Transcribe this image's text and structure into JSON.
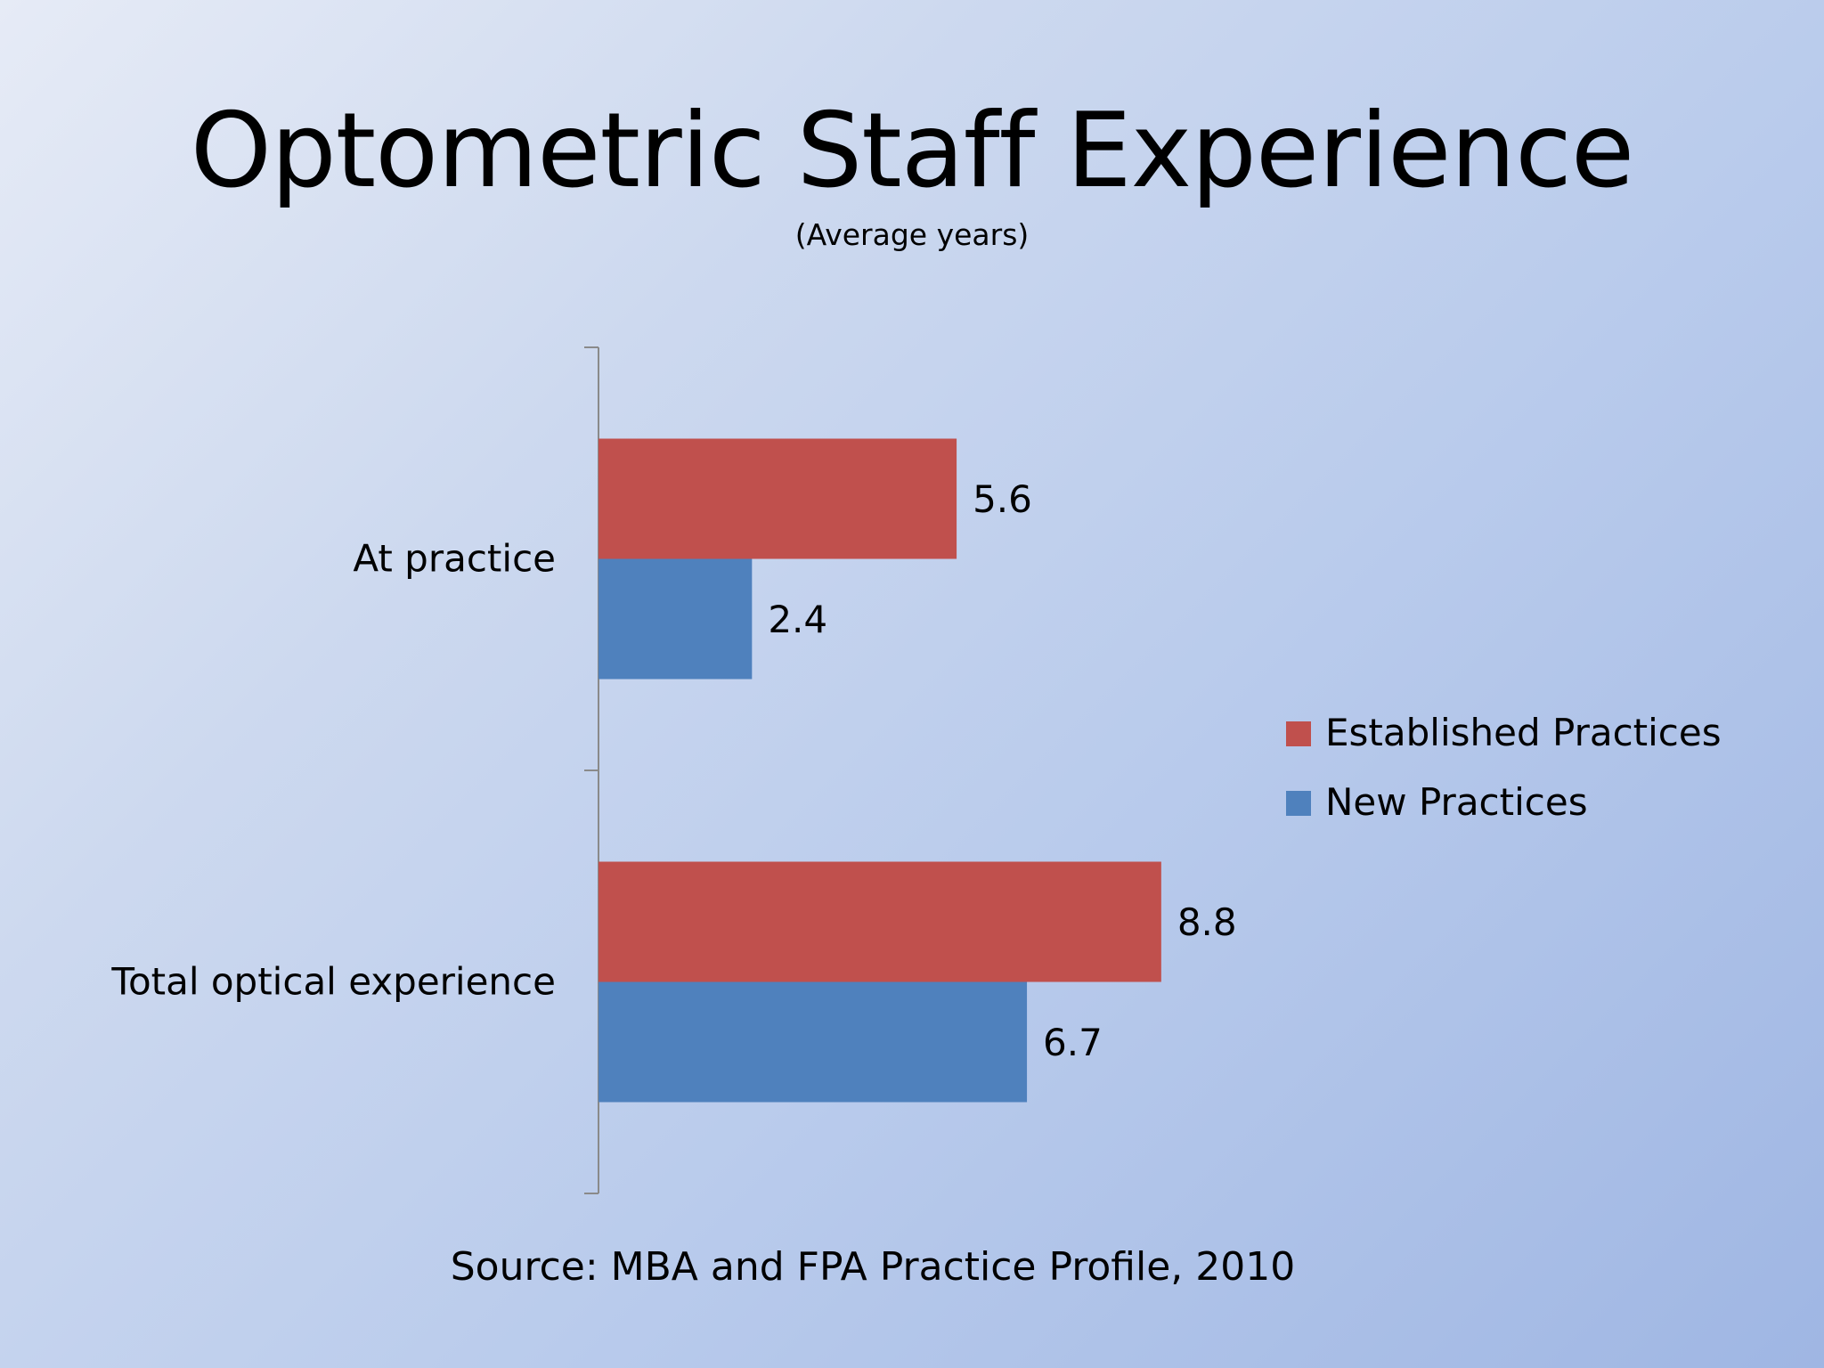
{
  "slide": {
    "title": "Optometric Staff Experience",
    "subtitle": "(Average years)",
    "source": "Source: MBA and FPA Practice Profile, 2010"
  },
  "chart_data": {
    "type": "bar",
    "orientation": "horizontal",
    "categories": [
      "At practice",
      "Total optical experience"
    ],
    "series": [
      {
        "name": "Established Practices",
        "values": [
          5.6,
          8.8
        ],
        "color": "#c0504d"
      },
      {
        "name": "New Practices",
        "values": [
          2.4,
          6.7
        ],
        "color": "#4f81bd"
      }
    ],
    "data_labels": true,
    "legend_position": "right",
    "grid": false,
    "value_axis_visible": false,
    "xlim": [
      0,
      10
    ]
  }
}
